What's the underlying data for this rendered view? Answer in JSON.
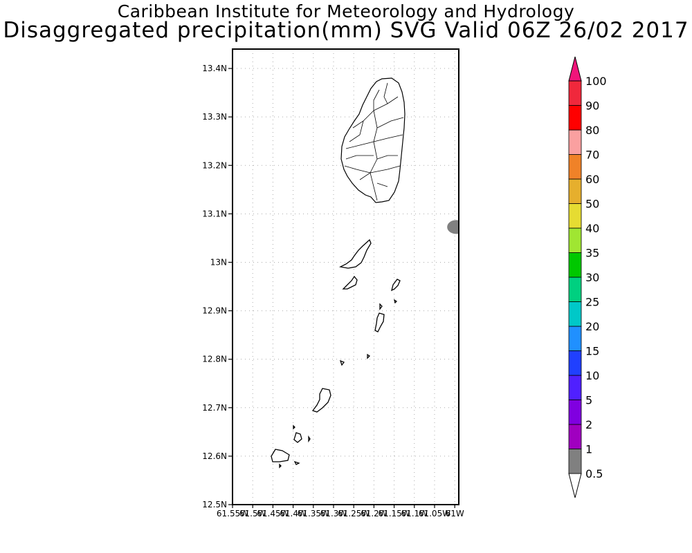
{
  "title": "Caribbean Institute for Meteorology and Hydrology",
  "subtitle": "Disaggregated precipitation(mm) SVG Valid 06Z 26/02 2017",
  "map": {
    "lat_ticks": [
      "13.4N",
      "13.3N",
      "13.2N",
      "13.1N",
      "13N",
      "12.9N",
      "12.8N",
      "12.7N",
      "12.6N",
      "12.5N"
    ],
    "lon_ticks": [
      "61.55W",
      "61.5W",
      "61.45W",
      "61.4W",
      "61.35W",
      "61.3W",
      "61.25W",
      "61.2W",
      "61.15W",
      "61.1W",
      "61.05W",
      "61W"
    ],
    "lat_range": [
      12.5,
      13.44
    ],
    "lon_range": [
      -61.55,
      -60.99
    ],
    "grid": true,
    "precip_patches": [
      {
        "label": "0.5-1 mm",
        "lat": 13.07,
        "lon": -61.0,
        "color": "#808080"
      }
    ]
  },
  "colorbar": {
    "levels": [
      "0.5",
      "1",
      "2",
      "5",
      "10",
      "15",
      "20",
      "25",
      "30",
      "35",
      "40",
      "50",
      "60",
      "70",
      "80",
      "90",
      "100"
    ],
    "colors": [
      "#808080",
      "#a000c0",
      "#8000e0",
      "#5020ff",
      "#2040ff",
      "#2090ff",
      "#00c8c8",
      "#00d080",
      "#00c800",
      "#a0e632",
      "#e6dc32",
      "#e6af2d",
      "#f08228",
      "#faa0a0",
      "#ff0000",
      "#f0283c",
      "#f0147a"
    ],
    "below_color": "#ffffff"
  }
}
